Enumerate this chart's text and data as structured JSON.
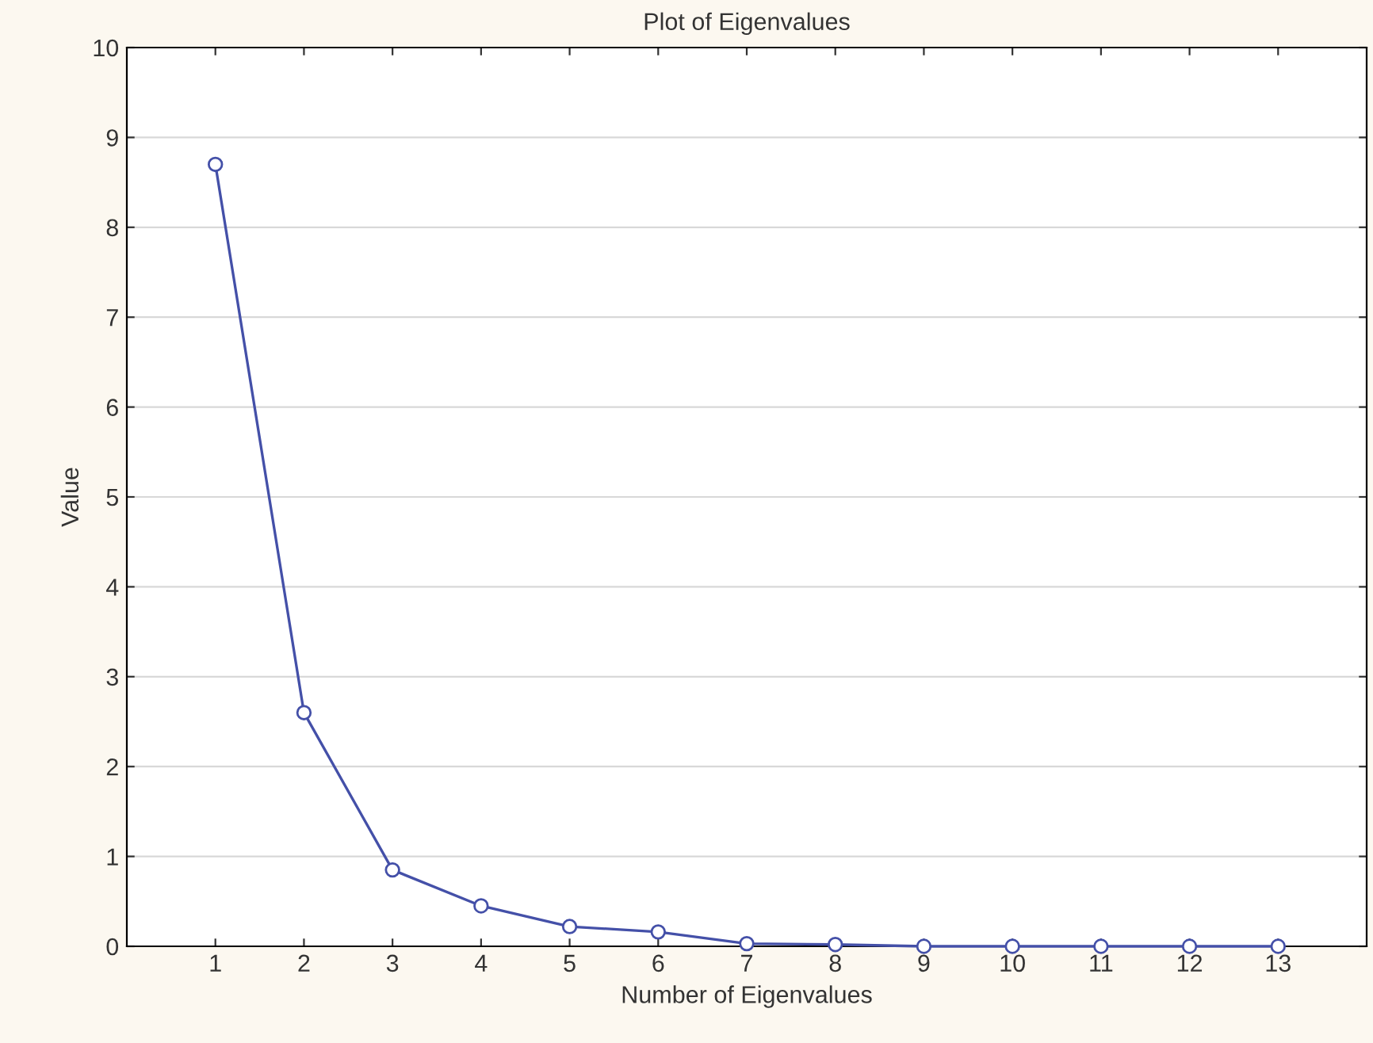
{
  "chart_data": {
    "type": "line",
    "title": "Plot of Eigenvalues",
    "xlabel": "Number of Eigenvalues",
    "ylabel": "Value",
    "x": [
      1,
      2,
      3,
      4,
      5,
      6,
      7,
      8,
      9,
      10,
      11,
      12,
      13
    ],
    "series": [
      {
        "color": "#4450a8",
        "values": [
          8.7,
          2.6,
          0.85,
          0.45,
          0.22,
          0.16,
          0.03,
          0.02,
          0,
          0,
          0,
          0,
          0
        ]
      }
    ],
    "xlim": [
      0,
      14
    ],
    "xticks": [
      1,
      2,
      3,
      4,
      5,
      6,
      7,
      8,
      9,
      10,
      11,
      12,
      13
    ],
    "ylim": [
      0,
      10
    ],
    "yticks": [
      0,
      1,
      2,
      3,
      4,
      5,
      6,
      7,
      8,
      9,
      10
    ],
    "grid": "y",
    "marker": "circle",
    "line_style": "solid",
    "legend": false
  }
}
